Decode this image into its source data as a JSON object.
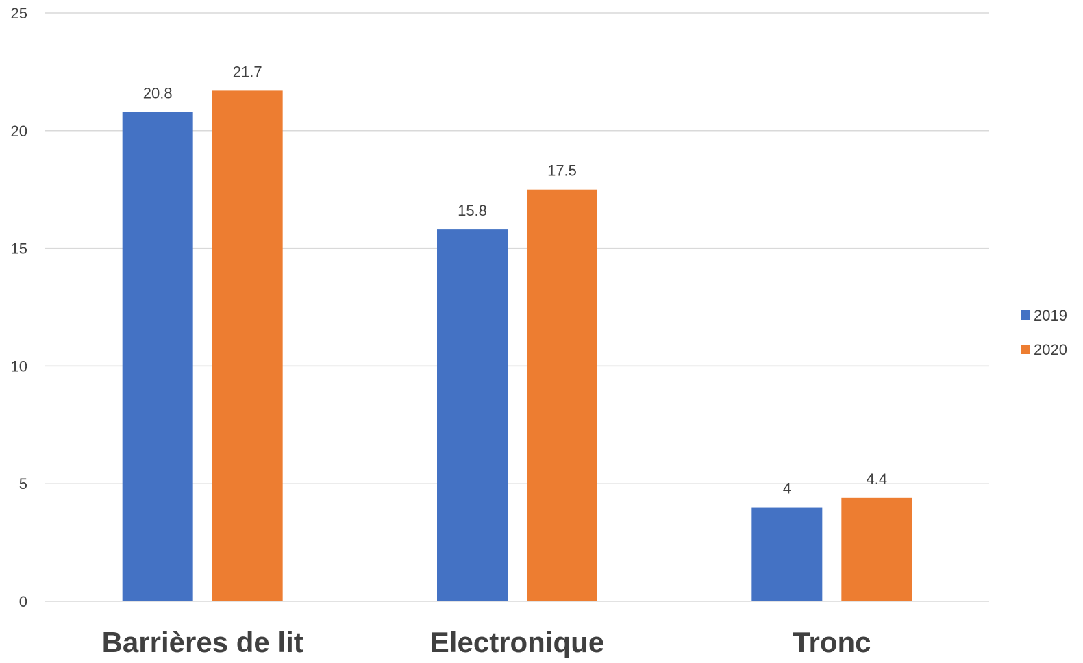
{
  "chart_data": {
    "type": "bar",
    "categories": [
      "Barrières de lit",
      "Electronique",
      "Tronc"
    ],
    "series": [
      {
        "name": "2019",
        "values": [
          20.8,
          15.8,
          4
        ],
        "labels": [
          "20.8",
          "15.8",
          "4"
        ],
        "color": "#4472C4"
      },
      {
        "name": "2020",
        "values": [
          21.7,
          17.5,
          4.4
        ],
        "labels": [
          "21.7",
          "17.5",
          "4.4"
        ],
        "color": "#ED7D31"
      }
    ],
    "ylim": [
      0,
      25
    ],
    "yticks": [
      0,
      5,
      10,
      15,
      20,
      25
    ],
    "grid": true,
    "legend_position": "right",
    "gridline_color": "#D9D9D9",
    "text_color": "#404040"
  }
}
